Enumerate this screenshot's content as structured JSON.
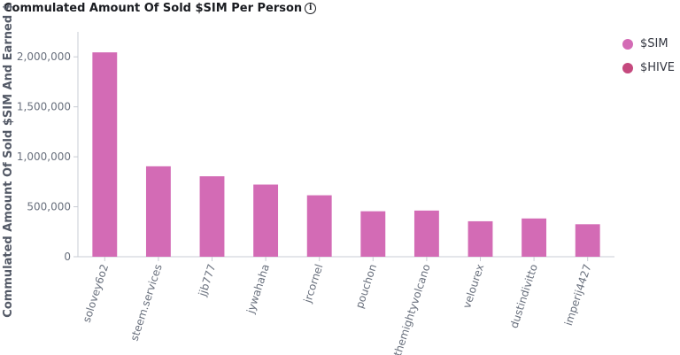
{
  "chart_data": {
    "type": "bar",
    "title": "Commulated Amount Of Sold $SIM Per Person",
    "ylabel": "Commulated Amount Of Sold $SIM And Earned $",
    "xlabel": "",
    "categories": [
      "solovey6o2",
      "steem.services",
      "jjb777",
      "jywahaha",
      "jrcornel",
      "pouchon",
      "themightyvolcano",
      "velourex",
      "dustindivitto",
      "imperij4427"
    ],
    "series": [
      {
        "name": "$SIM",
        "color": "#d36bb5",
        "values": [
          2045000,
          905000,
          805000,
          722000,
          615000,
          455000,
          462000,
          355000,
          383000,
          325000
        ]
      },
      {
        "name": "$HIVE",
        "color": "#c5497e",
        "values": [
          0,
          0,
          0,
          0,
          0,
          0,
          0,
          0,
          0,
          0
        ]
      }
    ],
    "yticks": [
      0,
      500000,
      1000000,
      1500000,
      2000000
    ],
    "ytick_labels": [
      "0",
      "500,000",
      "1,000,000",
      "1,500,000",
      "2,000,000"
    ],
    "ylim": [
      0,
      2250000
    ],
    "legend_position": "top-right",
    "grid": false
  },
  "legend_colors": [
    "#d36bb5",
    "#c5497e"
  ]
}
